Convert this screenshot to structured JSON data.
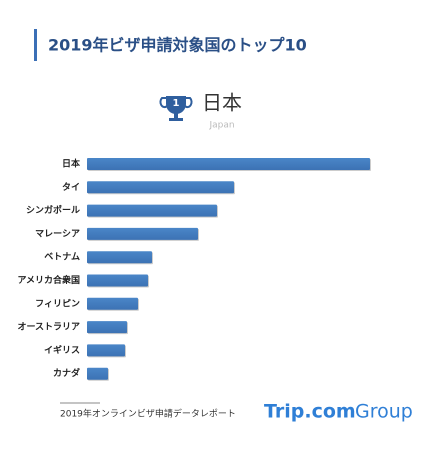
{
  "chart_data": {
    "type": "bar",
    "orientation": "horizontal",
    "title": "2019年ビザ申請対象国のトップ10",
    "badge": {
      "rank": "1",
      "label": "日本",
      "sublabel": "Japan"
    },
    "categories": [
      "日本",
      "タイ",
      "シンガポール",
      "マレーシア",
      "ベトナム",
      "アメリカ合衆国",
      "フィリピン",
      "オーストラリア",
      "イギリス",
      "カナダ"
    ],
    "values": [
      283,
      147,
      130,
      111,
      65,
      61,
      51,
      40,
      38,
      21
    ],
    "color": "#4a86c8",
    "source": "2019年オンラインビザ申請データレポート",
    "logo": [
      "Trip.com",
      "Group"
    ]
  }
}
